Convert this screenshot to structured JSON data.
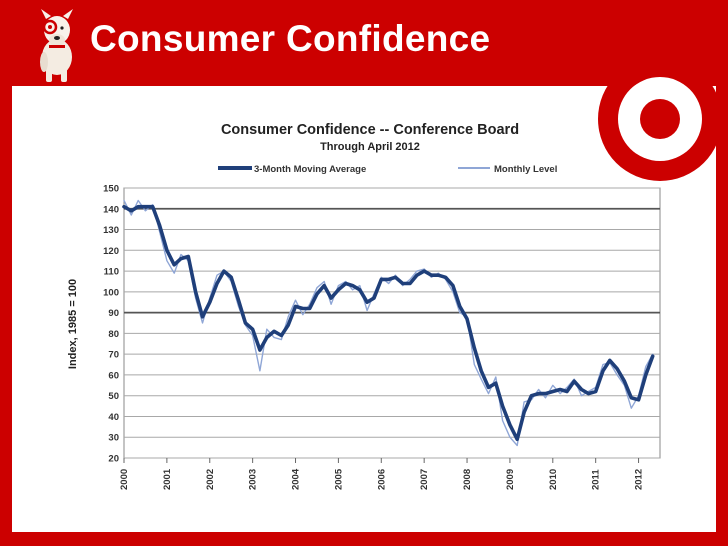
{
  "slide": {
    "title": "Consumer Confidence"
  },
  "colors": {
    "background": "#cc0000",
    "panel": "#ffffff",
    "moving_average": "#1f3f7a",
    "monthly_level": "#8fa6d6",
    "grid": "#9a9a9a",
    "logo": "#cc0000"
  },
  "icons": [
    "bullseye-dog-icon",
    "target-logo-icon"
  ],
  "chart_data": {
    "type": "line",
    "title": "Consumer Confidence -- Conference Board",
    "subtitle": "Through April 2012",
    "ylabel": "Index, 1985 = 100",
    "xlabel": "",
    "ylim": [
      20,
      150
    ],
    "xlim": [
      2000.0,
      2012.5
    ],
    "yticks": [
      20,
      30,
      40,
      50,
      60,
      70,
      80,
      90,
      100,
      110,
      120,
      130,
      140,
      150
    ],
    "xticks": [
      "2000",
      "2001",
      "2002",
      "2003",
      "2004",
      "2005",
      "2006",
      "2007",
      "2008",
      "2009",
      "2010",
      "2011",
      "2012"
    ],
    "highlighted_gridlines": [
      90,
      140
    ],
    "grid": true,
    "legend_position": "top",
    "series": [
      {
        "name": "3-Month Moving Average",
        "x": [
          2000.0,
          2000.17,
          2000.33,
          2000.5,
          2000.67,
          2000.83,
          2001.0,
          2001.17,
          2001.33,
          2001.5,
          2001.67,
          2001.83,
          2002.0,
          2002.17,
          2002.33,
          2002.5,
          2002.67,
          2002.83,
          2003.0,
          2003.17,
          2003.33,
          2003.5,
          2003.67,
          2003.83,
          2004.0,
          2004.17,
          2004.33,
          2004.5,
          2004.67,
          2004.83,
          2005.0,
          2005.17,
          2005.33,
          2005.5,
          2005.67,
          2005.83,
          2006.0,
          2006.17,
          2006.33,
          2006.5,
          2006.67,
          2006.83,
          2007.0,
          2007.17,
          2007.33,
          2007.5,
          2007.67,
          2007.83,
          2008.0,
          2008.17,
          2008.33,
          2008.5,
          2008.67,
          2008.83,
          2009.0,
          2009.17,
          2009.33,
          2009.5,
          2009.67,
          2009.83,
          2010.0,
          2010.17,
          2010.33,
          2010.5,
          2010.67,
          2010.83,
          2011.0,
          2011.17,
          2011.33,
          2011.5,
          2011.67,
          2011.83,
          2012.0,
          2012.17,
          2012.33
        ],
        "y": [
          141,
          139,
          141,
          141,
          141,
          132,
          120,
          113,
          116,
          117,
          100,
          88,
          95,
          104,
          110,
          107,
          96,
          85,
          82,
          72,
          78,
          81,
          79,
          84,
          93,
          92,
          92,
          99,
          103,
          97,
          101,
          104,
          103,
          101,
          95,
          97,
          106,
          106,
          107,
          104,
          104,
          108,
          110,
          108,
          108,
          107,
          103,
          93,
          87,
          73,
          62,
          54,
          56,
          45,
          36,
          29,
          42,
          50,
          51,
          51,
          52,
          53,
          52,
          57,
          53,
          51,
          52,
          62,
          67,
          63,
          57,
          49,
          48,
          60,
          69
        ]
      },
      {
        "name": "Monthly Level",
        "x": [
          2000.0,
          2000.17,
          2000.33,
          2000.5,
          2000.67,
          2000.83,
          2001.0,
          2001.17,
          2001.33,
          2001.5,
          2001.67,
          2001.83,
          2002.0,
          2002.17,
          2002.33,
          2002.5,
          2002.67,
          2002.83,
          2003.0,
          2003.17,
          2003.33,
          2003.5,
          2003.67,
          2003.83,
          2004.0,
          2004.17,
          2004.33,
          2004.5,
          2004.67,
          2004.83,
          2005.0,
          2005.17,
          2005.33,
          2005.5,
          2005.67,
          2005.83,
          2006.0,
          2006.17,
          2006.33,
          2006.5,
          2006.67,
          2006.83,
          2007.0,
          2007.17,
          2007.33,
          2007.5,
          2007.67,
          2007.83,
          2008.0,
          2008.17,
          2008.33,
          2008.5,
          2008.67,
          2008.83,
          2009.0,
          2009.17,
          2009.33,
          2009.5,
          2009.67,
          2009.83,
          2010.0,
          2010.17,
          2010.33,
          2010.5,
          2010.67,
          2010.83,
          2011.0,
          2011.17,
          2011.33,
          2011.5,
          2011.67,
          2011.83,
          2012.0,
          2012.17,
          2012.33
        ],
        "y": [
          144,
          137,
          144,
          139,
          142,
          129,
          115,
          109,
          118,
          115,
          97,
          85,
          97,
          108,
          110,
          105,
          93,
          84,
          79,
          62,
          82,
          78,
          77,
          88,
          96,
          89,
          94,
          102,
          105,
          94,
          103,
          105,
          101,
          103,
          91,
          99,
          107,
          104,
          108,
          103,
          106,
          110,
          111,
          107,
          109,
          106,
          100,
          90,
          88,
          65,
          58,
          51,
          59,
          38,
          30,
          26,
          47,
          48,
          53,
          49,
          55,
          51,
          54,
          58,
          50,
          52,
          54,
          65,
          66,
          60,
          55,
          44,
          50,
          64,
          70
        ]
      }
    ]
  }
}
